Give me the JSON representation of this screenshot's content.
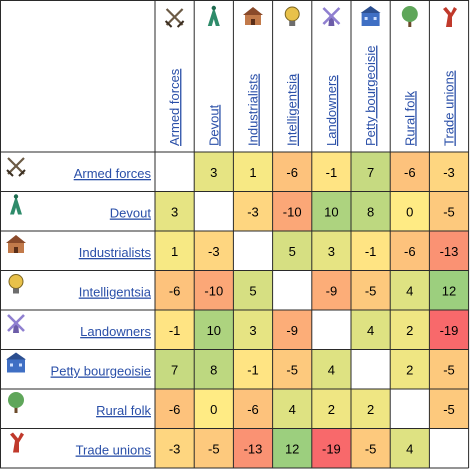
{
  "chart_data": {
    "type": "heatmap",
    "title": "",
    "row_labels": [
      "Armed forces",
      "Devout",
      "Industrialists",
      "Intelligentsia",
      "Landowners",
      "Petty bourgeoisie",
      "Rural folk",
      "Trade unions"
    ],
    "col_labels": [
      "Armed forces",
      "Devout",
      "Industrialists",
      "Intelligentsia",
      "Landowners",
      "Petty bourgeoisie",
      "Rural folk",
      "Trade unions"
    ],
    "icons": [
      "crossed-swords-icon",
      "devout-figure-icon",
      "industrialist-house-icon",
      "lightbulb-icon",
      "windmill-icon",
      "petty-bourgeoisie-building-icon",
      "tree-icon",
      "trade-union-figure-icon"
    ],
    "values": [
      [
        null,
        3,
        1,
        -6,
        -1,
        7,
        -6,
        -3
      ],
      [
        3,
        null,
        -3,
        -10,
        10,
        8,
        0,
        -5
      ],
      [
        1,
        -3,
        null,
        5,
        3,
        -1,
        -6,
        -13
      ],
      [
        -6,
        -10,
        5,
        null,
        -9,
        -5,
        4,
        12
      ],
      [
        -1,
        10,
        3,
        -9,
        null,
        4,
        2,
        -19
      ],
      [
        7,
        8,
        -1,
        -5,
        4,
        null,
        2,
        -5
      ],
      [
        -6,
        0,
        -6,
        4,
        2,
        2,
        null,
        -5
      ],
      [
        -3,
        -5,
        -13,
        12,
        -19,
        -5,
        4,
        null
      ]
    ],
    "color_scale": {
      "negative": "#f8696b",
      "mid": "#ffeb84",
      "positive": "#63be7b"
    },
    "link_color": "#2a4fa8"
  }
}
